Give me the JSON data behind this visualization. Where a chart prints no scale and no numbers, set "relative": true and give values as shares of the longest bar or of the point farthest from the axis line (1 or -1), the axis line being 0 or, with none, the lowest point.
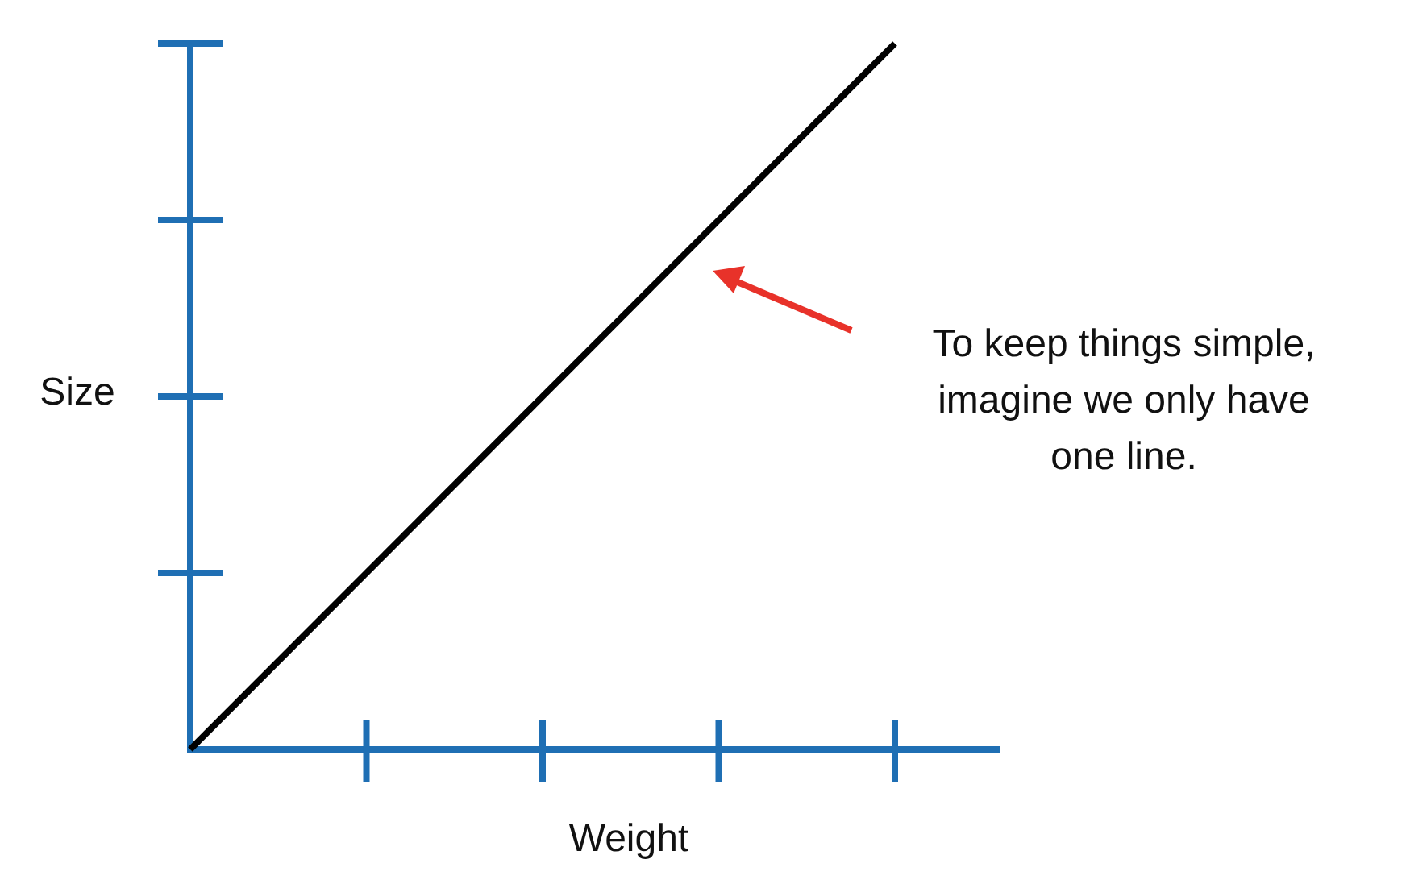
{
  "chart_data": {
    "type": "line",
    "relative": true,
    "xlabel": "Weight",
    "ylabel": "Size",
    "categories": [
      null,
      null,
      null,
      null,
      null
    ],
    "series": [
      {
        "color": "#000000",
        "values": [
          0,
          0.25,
          0.5,
          0.75,
          1
        ]
      }
    ],
    "marker": "none",
    "line_style": "solid",
    "grid": false,
    "annotations": [
      "To keep things simple,\nimagine we only have\none line."
    ]
  }
}
